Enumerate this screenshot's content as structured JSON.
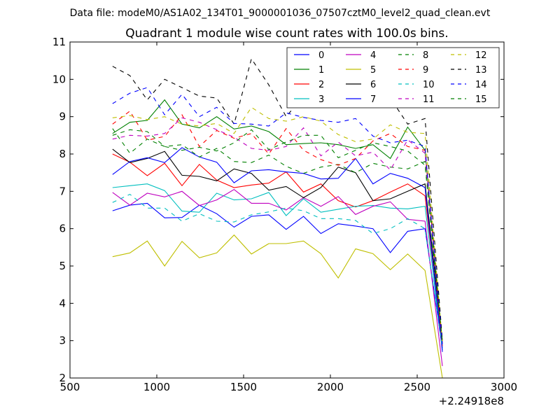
{
  "header": {
    "datafile": "Data file: modeM0/AS1A02_134T01_9000001036_07507cztM0_level2_quad_clean.evt"
  },
  "chart_data": {
    "type": "line",
    "title": "Quadrant 1 module wise count rates with 100.0s bins.",
    "xlabel": "",
    "ylabel": "",
    "x_offset_label": "+2.24918e8",
    "xlim": [
      500,
      3000
    ],
    "ylim": [
      2,
      11
    ],
    "xticks": [
      "500",
      "1000",
      "1500",
      "2000",
      "2500",
      "3000"
    ],
    "yticks": [
      "2",
      "3",
      "4",
      "5",
      "6",
      "7",
      "8",
      "9",
      "10",
      "11"
    ],
    "legend_position": "top-right",
    "x": [
      745,
      845,
      945,
      1045,
      1145,
      1245,
      1345,
      1445,
      1545,
      1645,
      1745,
      1845,
      1945,
      2045,
      2145,
      2245,
      2345,
      2445,
      2545,
      2645
    ],
    "series": [
      {
        "name": "0",
        "color": "#0000ff",
        "dash": "solid",
        "values": [
          6.48,
          6.63,
          6.68,
          6.29,
          6.3,
          6.63,
          6.4,
          6.04,
          6.33,
          6.37,
          5.98,
          6.33,
          5.87,
          6.13,
          6.07,
          6.0,
          5.36,
          5.93,
          6.0,
          2.8
        ]
      },
      {
        "name": "1",
        "color": "#008000",
        "dash": "solid",
        "values": [
          8.55,
          8.85,
          8.9,
          9.45,
          8.8,
          8.7,
          9.0,
          8.67,
          8.75,
          8.6,
          8.25,
          8.28,
          8.3,
          8.25,
          8.15,
          8.25,
          7.88,
          8.72,
          8.1,
          2.9
        ]
      },
      {
        "name": "2",
        "color": "#ff0000",
        "dash": "solid",
        "values": [
          8.0,
          7.78,
          7.42,
          7.75,
          7.15,
          7.72,
          7.3,
          7.1,
          7.17,
          7.22,
          7.52,
          6.98,
          7.2,
          6.75,
          6.58,
          6.75,
          6.98,
          7.2,
          6.88,
          2.85
        ]
      },
      {
        "name": "3",
        "color": "#00bfbf",
        "dash": "solid",
        "values": [
          7.1,
          7.15,
          7.2,
          7.02,
          6.47,
          6.44,
          6.95,
          6.77,
          6.8,
          6.97,
          6.35,
          6.8,
          6.44,
          6.52,
          6.6,
          6.62,
          6.55,
          6.53,
          6.6,
          2.75
        ]
      },
      {
        "name": "4",
        "color": "#bf00bf",
        "dash": "solid",
        "values": [
          6.97,
          6.63,
          6.95,
          6.85,
          7.0,
          6.62,
          6.77,
          7.05,
          6.68,
          6.68,
          6.5,
          6.83,
          6.6,
          6.86,
          6.38,
          6.6,
          6.72,
          6.25,
          6.2,
          2.32
        ]
      },
      {
        "name": "5",
        "color": "#bfbf00",
        "dash": "solid",
        "values": [
          5.25,
          5.35,
          5.67,
          5.0,
          5.66,
          5.22,
          5.35,
          5.83,
          5.32,
          5.6,
          5.6,
          5.67,
          5.33,
          4.68,
          5.46,
          5.33,
          4.9,
          5.32,
          4.88,
          2.0
        ]
      },
      {
        "name": "6",
        "color": "#000000",
        "dash": "solid",
        "values": [
          8.13,
          7.77,
          7.88,
          8.07,
          7.43,
          7.4,
          7.28,
          7.6,
          7.48,
          7.03,
          7.13,
          6.83,
          7.1,
          7.65,
          7.5,
          6.75,
          6.8,
          7.0,
          7.2,
          3.0
        ]
      },
      {
        "name": "7",
        "color": "#0000ff",
        "dash": "solid",
        "values": [
          7.45,
          7.8,
          7.9,
          7.77,
          8.17,
          7.92,
          7.78,
          7.23,
          7.55,
          7.58,
          7.52,
          7.48,
          7.33,
          7.35,
          7.88,
          7.2,
          7.48,
          7.35,
          7.1,
          2.7
        ]
      },
      {
        "name": "8",
        "color": "#008000",
        "dash": "dashed",
        "values": [
          8.68,
          8.02,
          8.4,
          8.2,
          8.25,
          7.92,
          8.15,
          7.8,
          7.77,
          7.97,
          7.67,
          7.48,
          7.65,
          7.72,
          7.5,
          7.75,
          7.65,
          7.6,
          7.8,
          2.9
        ]
      },
      {
        "name": "9",
        "color": "#ff0000",
        "dash": "dashed",
        "values": [
          8.8,
          9.15,
          8.37,
          8.47,
          9.05,
          8.2,
          8.63,
          8.42,
          8.55,
          8.0,
          8.68,
          8.1,
          7.85,
          7.7,
          7.88,
          8.35,
          8.55,
          8.2,
          8.1,
          2.85
        ]
      },
      {
        "name": "10",
        "color": "#00bfbf",
        "dash": "dashed",
        "values": [
          6.7,
          6.92,
          6.55,
          6.55,
          6.2,
          6.4,
          6.2,
          6.18,
          6.37,
          6.45,
          6.55,
          6.48,
          6.27,
          6.27,
          6.22,
          5.87,
          6.0,
          6.27,
          6.0,
          2.8
        ]
      },
      {
        "name": "11",
        "color": "#bf00bf",
        "dash": "dashed",
        "values": [
          8.4,
          8.5,
          8.48,
          8.55,
          8.97,
          8.85,
          8.65,
          8.45,
          8.15,
          8.1,
          8.2,
          8.7,
          7.95,
          8.32,
          7.95,
          8.05,
          7.57,
          8.38,
          8.02,
          2.9
        ]
      },
      {
        "name": "12",
        "color": "#bfbf00",
        "dash": "dashed",
        "values": [
          8.97,
          9.03,
          8.92,
          9.0,
          8.8,
          8.75,
          8.82,
          8.55,
          9.25,
          8.95,
          8.88,
          9.0,
          8.88,
          8.52,
          8.33,
          8.4,
          8.78,
          8.58,
          8.55,
          2.95
        ]
      },
      {
        "name": "13",
        "color": "#000000",
        "dash": "dashed",
        "values": [
          10.35,
          10.1,
          9.45,
          10.0,
          9.78,
          9.55,
          9.5,
          8.8,
          10.55,
          9.85,
          9.0,
          9.55,
          9.25,
          9.3,
          9.68,
          9.4,
          9.5,
          8.8,
          8.95,
          3.0
        ]
      },
      {
        "name": "14",
        "color": "#0000ff",
        "dash": "dashed",
        "values": [
          9.35,
          9.63,
          9.78,
          9.05,
          9.6,
          9.0,
          9.25,
          8.82,
          8.8,
          8.75,
          9.1,
          8.98,
          8.9,
          8.85,
          8.95,
          8.48,
          8.3,
          8.37,
          8.2,
          2.9
        ]
      },
      {
        "name": "15",
        "color": "#008000",
        "dash": "dashed",
        "values": [
          8.5,
          8.65,
          8.6,
          8.2,
          8.1,
          8.18,
          8.08,
          8.3,
          8.65,
          8.12,
          8.32,
          8.5,
          8.5,
          7.9,
          8.1,
          8.3,
          8.2,
          8.08,
          7.7,
          2.95
        ]
      }
    ]
  }
}
